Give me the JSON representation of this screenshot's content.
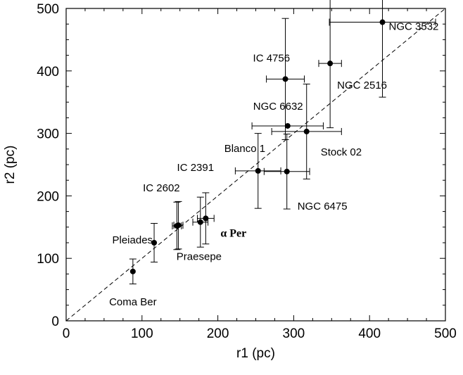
{
  "chart_data": {
    "type": "scatter",
    "xlabel": "r1 (pc)",
    "ylabel": "r2 (pc)",
    "xlim": [
      0,
      500
    ],
    "ylim": [
      0,
      500
    ],
    "xticks": [
      "0",
      "100",
      "200",
      "300",
      "400",
      "500"
    ],
    "yticks": [
      "0",
      "100",
      "200",
      "300",
      "400",
      "500"
    ],
    "grid": false,
    "reference_line": {
      "type": "dashed",
      "from": [
        0,
        0
      ],
      "to": [
        500,
        500
      ]
    },
    "points": [
      {
        "label": "Coma Ber",
        "x": 88,
        "y": 79,
        "xerr": 0,
        "yerr": 20
      },
      {
        "label": "Pleiades",
        "x": 116,
        "y": 125,
        "xerr": 0,
        "yerr": 31
      },
      {
        "label": "IC 2602",
        "x": 146,
        "y": 152,
        "xerr": 6,
        "yerr": 38
      },
      {
        "label": "IC 2391",
        "x": 148,
        "y": 153,
        "xerr": 6,
        "yerr": 38
      },
      {
        "label": "Praesepe",
        "x": 177,
        "y": 158,
        "xerr": 10,
        "yerr": 40
      },
      {
        "label": "α Per",
        "x": 184,
        "y": 164,
        "xerr": 11,
        "yerr": 41
      },
      {
        "label": "Blanco 1",
        "x": 253,
        "y": 240,
        "xerr": 30,
        "yerr": 60
      },
      {
        "label": "NGC 6475",
        "x": 291,
        "y": 239,
        "xerr": 30,
        "yerr": 60
      },
      {
        "label": "NGC 6632",
        "x": 292,
        "y": 312,
        "xerr": 47,
        "yerr": 0
      },
      {
        "label": "Stock 02",
        "x": 317,
        "y": 303,
        "xerr": 46,
        "yerr": 76
      },
      {
        "label": "IC 4756",
        "x": 289,
        "y": 387,
        "xerr": 25,
        "yerr": 97
      },
      {
        "label": "NGC 2516",
        "x": 348,
        "y": 412,
        "xerr": 15,
        "yerr": 103
      },
      {
        "label": "NGC 3532",
        "x": 417,
        "y": 478,
        "xerr": 70,
        "yerr": 120
      }
    ]
  }
}
